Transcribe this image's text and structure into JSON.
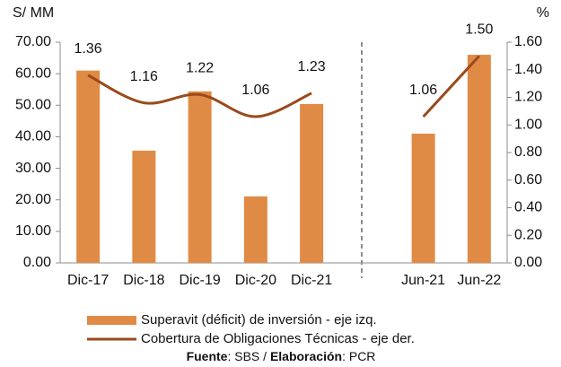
{
  "chart_data": {
    "type": "bar_line",
    "y_axis_label": "S/ MM",
    "y2_axis_label": "%",
    "categories": [
      "Dic-17",
      "Dic-18",
      "Dic-19",
      "Dic-20",
      "Dic-21",
      null,
      "Jun-21",
      "Jun-22"
    ],
    "series": [
      {
        "name": "Superavit (déficit) de inversión - eje izq.",
        "type": "bar",
        "color": "#e08b45",
        "values": [
          61,
          35.6,
          54.4,
          21.1,
          50.4,
          null,
          41,
          66
        ]
      },
      {
        "name": "Cobertura de Obligaciones Técnicas - eje der.",
        "type": "line",
        "axis": "y2",
        "color": "#9a4a1c",
        "values": [
          1.36,
          1.16,
          1.22,
          1.06,
          1.23,
          null,
          1.06,
          1.5
        ],
        "value_labels": [
          "1.36",
          "1.16",
          "1.22",
          "1.06",
          "1.23",
          null,
          "1.06",
          "1.50"
        ]
      }
    ],
    "ylim": [
      0,
      70
    ],
    "yticks": [
      {
        "value": 0,
        "label": "0.00"
      },
      {
        "value": 10,
        "label": "10.00"
      },
      {
        "value": 20,
        "label": "20.00"
      },
      {
        "value": 30,
        "label": "30.00"
      },
      {
        "value": 40,
        "label": "40.00"
      },
      {
        "value": 50,
        "label": "50.00"
      },
      {
        "value": 60,
        "label": "60.00"
      },
      {
        "value": 70,
        "label": "70.00"
      }
    ],
    "y2lim": [
      0,
      1.6
    ],
    "y2ticks": [
      {
        "value": 0,
        "label": "0.00"
      },
      {
        "value": 0.2,
        "label": "0.20"
      },
      {
        "value": 0.4,
        "label": "0.40"
      },
      {
        "value": 0.6,
        "label": "0.60"
      },
      {
        "value": 0.8,
        "label": "0.80"
      },
      {
        "value": 1,
        "label": "1.00"
      },
      {
        "value": 1.2,
        "label": "1.20"
      },
      {
        "value": 1.4,
        "label": "1.40"
      },
      {
        "value": 1.6,
        "label": "1.60"
      }
    ],
    "grid": false,
    "legend": "bottom",
    "source": [
      "Fuente",
      ": SBS / ",
      "Elaboración",
      ": PCR"
    ]
  }
}
